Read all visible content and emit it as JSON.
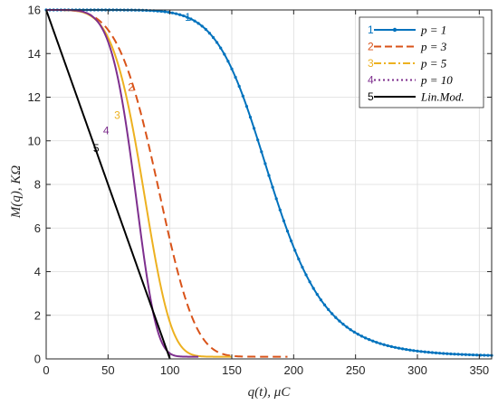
{
  "chart_data": {
    "type": "line",
    "xlabel": "q(t),  μC",
    "ylabel": "M(q),  KΩ",
    "xlim": [
      0,
      360
    ],
    "ylim": [
      0,
      16
    ],
    "xticks": [
      "0",
      "50",
      "100",
      "150",
      "200",
      "250",
      "300",
      "350"
    ],
    "yticks": [
      "0",
      "2",
      "4",
      "6",
      "8",
      "10",
      "12",
      "14",
      "16"
    ],
    "grid": true,
    "legend_position": "top-right",
    "series": [
      {
        "name": "p = 1",
        "number": "1",
        "color": "#0072BD",
        "style": "solid-dots",
        "p": 1,
        "x_end": 360,
        "label_at": [
          112,
          15.5
        ]
      },
      {
        "name": "p = 3",
        "number": "2",
        "color": "#D95319",
        "style": "dashed",
        "p": 3,
        "x_end": 195,
        "label_at": [
          66,
          12.3
        ]
      },
      {
        "name": "p = 5",
        "number": "3",
        "color": "#EDB120",
        "style": "solid",
        "p": 5,
        "x_end": 150,
        "label_at": [
          55,
          11.0
        ]
      },
      {
        "name": "p = 10",
        "number": "4",
        "color": "#7E2F8E",
        "style": "solid",
        "p": 10,
        "x_end": 123,
        "label_at": [
          46,
          10.3
        ]
      },
      {
        "name": "Lin.Mod.",
        "number": "5",
        "color": "#000000",
        "style": "solid",
        "p": 0,
        "x_end": 100,
        "label_at": [
          38,
          9.5
        ]
      }
    ],
    "legend_labels": [
      "p = 1",
      "p = 3",
      "p = 5",
      "p = 10",
      "Lin.Mod."
    ]
  }
}
